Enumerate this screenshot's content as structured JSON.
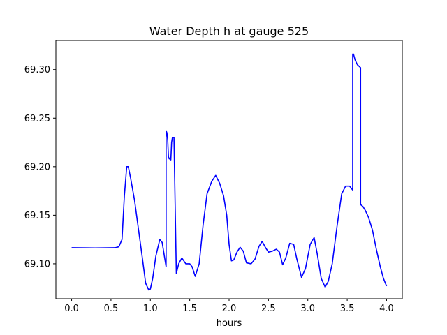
{
  "chart_data": {
    "type": "line",
    "title": "Water Depth h at gauge 525",
    "xlabel": "hours",
    "ylabel": "",
    "xlim": [
      -0.2,
      4.2
    ],
    "ylim": [
      69.064,
      69.33
    ],
    "xticks": [
      0.0,
      0.5,
      1.0,
      1.5,
      2.0,
      2.5,
      3.0,
      3.5,
      4.0
    ],
    "xtick_labels": [
      "0.0",
      "0.5",
      "1.0",
      "1.5",
      "2.0",
      "2.5",
      "3.0",
      "3.5",
      "4.0"
    ],
    "yticks": [
      69.1,
      69.15,
      69.2,
      69.25,
      69.3
    ],
    "ytick_labels": [
      "69.10",
      "69.15",
      "69.20",
      "69.25",
      "69.30"
    ],
    "grid": false,
    "legend": "none",
    "colors": {
      "line": "#0000ff"
    },
    "series": [
      {
        "name": "",
        "x": [
          0.0,
          0.3,
          0.55,
          0.6,
          0.64,
          0.67,
          0.7,
          0.72,
          0.75,
          0.8,
          0.85,
          0.9,
          0.94,
          0.98,
          1.0,
          1.03,
          1.07,
          1.12,
          1.15,
          1.18,
          1.2,
          1.2,
          1.21,
          1.22,
          1.23,
          1.24,
          1.25,
          1.26,
          1.27,
          1.28,
          1.3,
          1.33,
          1.33,
          1.36,
          1.4,
          1.45,
          1.5,
          1.53,
          1.57,
          1.62,
          1.67,
          1.72,
          1.78,
          1.83,
          1.88,
          1.93,
          1.97,
          2.0,
          2.03,
          2.06,
          2.1,
          2.14,
          2.18,
          2.22,
          2.28,
          2.33,
          2.38,
          2.42,
          2.46,
          2.5,
          2.55,
          2.6,
          2.64,
          2.68,
          2.72,
          2.77,
          2.82,
          2.86,
          2.92,
          2.97,
          3.03,
          3.08,
          3.12,
          3.17,
          3.22,
          3.26,
          3.31,
          3.37,
          3.43,
          3.48,
          3.53,
          3.57,
          3.57,
          3.58,
          3.6,
          3.63,
          3.67,
          3.67,
          3.7,
          3.73,
          3.77,
          3.82,
          3.87,
          3.92,
          3.96,
          4.0
        ],
        "y": [
          69.1165,
          69.1163,
          69.1165,
          69.1175,
          69.125,
          69.17,
          69.2,
          69.2,
          69.188,
          69.165,
          69.135,
          69.105,
          69.08,
          69.073,
          69.074,
          69.085,
          69.108,
          69.125,
          69.122,
          69.107,
          69.097,
          69.237,
          69.235,
          69.228,
          69.21,
          69.208,
          69.209,
          69.207,
          69.225,
          69.23,
          69.23,
          69.09,
          69.09,
          69.1,
          69.106,
          69.1,
          69.1,
          69.097,
          69.087,
          69.1,
          69.14,
          69.172,
          69.185,
          69.191,
          69.183,
          69.17,
          69.15,
          69.12,
          69.103,
          69.104,
          69.112,
          69.117,
          69.113,
          69.101,
          69.1,
          69.105,
          69.118,
          69.123,
          69.117,
          69.112,
          69.113,
          69.115,
          69.112,
          69.099,
          69.106,
          69.121,
          69.12,
          69.105,
          69.086,
          69.095,
          69.12,
          69.127,
          69.11,
          69.085,
          69.076,
          69.082,
          69.1,
          69.138,
          69.172,
          69.18,
          69.18,
          69.176,
          69.316,
          69.316,
          69.31,
          69.305,
          69.302,
          69.161,
          69.159,
          69.155,
          69.148,
          69.135,
          69.115,
          69.097,
          69.085,
          69.077
        ]
      }
    ]
  }
}
